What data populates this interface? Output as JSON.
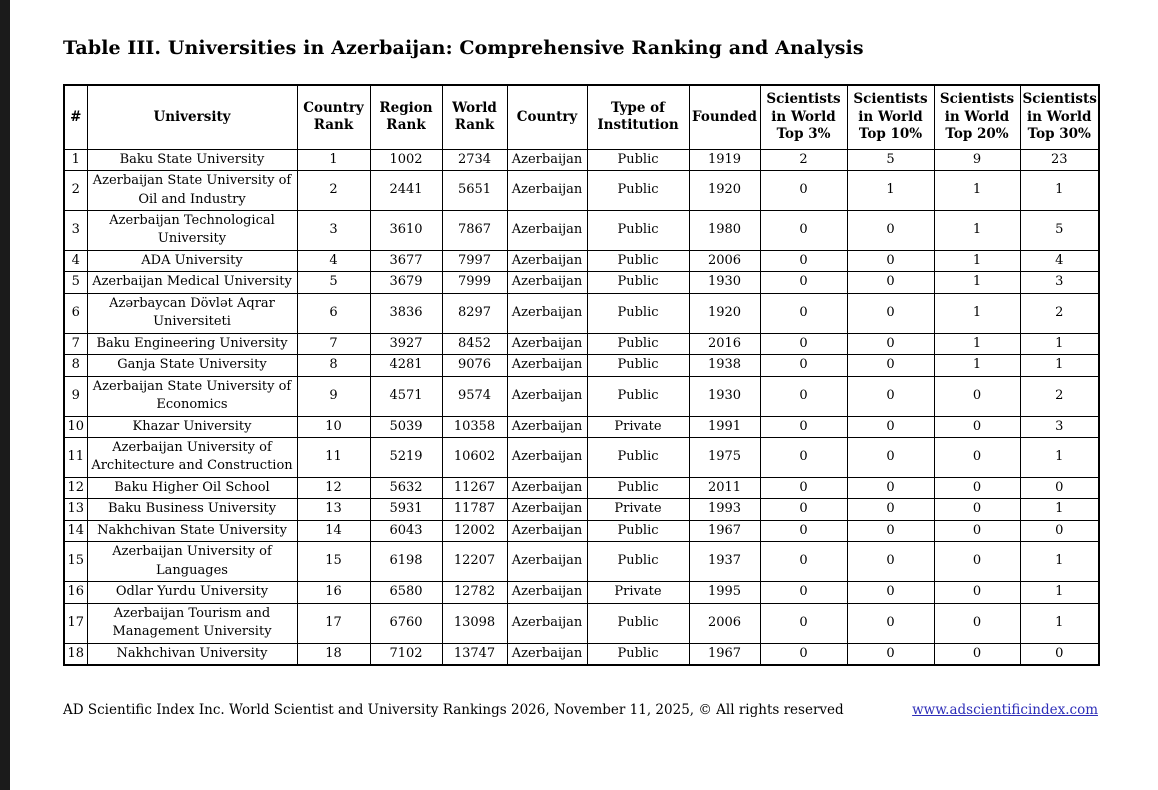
{
  "page": {
    "title": "Table III. Universities in Azerbaijan: Comprehensive Ranking and Analysis",
    "footer": {
      "copyright": "AD Scientific Index Inc. World Scientist and University Rankings 2026, November 11, 2025, © All rights reserved",
      "link": "www.adscientificindex.com"
    },
    "colors": {
      "text": "#000000",
      "table_border": "#000000",
      "link": "#2d2db8",
      "left_bar": "#1b1b1b",
      "background": "#ffffff"
    }
  },
  "table": {
    "columns": [
      "#",
      "University",
      "Country Rank",
      "Region Rank",
      "World Rank",
      "Country",
      "Type of Institution",
      "Founded",
      "Scientists in World Top 3%",
      "Scientists in World Top 10%",
      "Scientists in World Top 20%",
      "Scientists in World Top 30%"
    ],
    "rows": [
      [
        "1",
        "Baku State University",
        "1",
        "1002",
        "2734",
        "Azerbaijan",
        "Public",
        "1919",
        "2",
        "5",
        "9",
        "23"
      ],
      [
        "2",
        "Azerbaijan State University of Oil and Industry",
        "2",
        "2441",
        "5651",
        "Azerbaijan",
        "Public",
        "1920",
        "0",
        "1",
        "1",
        "1"
      ],
      [
        "3",
        "Azerbaijan Technological University",
        "3",
        "3610",
        "7867",
        "Azerbaijan",
        "Public",
        "1980",
        "0",
        "0",
        "1",
        "5"
      ],
      [
        "4",
        "ADA University",
        "4",
        "3677",
        "7997",
        "Azerbaijan",
        "Public",
        "2006",
        "0",
        "0",
        "1",
        "4"
      ],
      [
        "5",
        "Azerbaijan Medical University",
        "5",
        "3679",
        "7999",
        "Azerbaijan",
        "Public",
        "1930",
        "0",
        "0",
        "1",
        "3"
      ],
      [
        "6",
        "Azərbaycan Dövlət Aqrar Universiteti",
        "6",
        "3836",
        "8297",
        "Azerbaijan",
        "Public",
        "1920",
        "0",
        "0",
        "1",
        "2"
      ],
      [
        "7",
        "Baku Engineering University",
        "7",
        "3927",
        "8452",
        "Azerbaijan",
        "Public",
        "2016",
        "0",
        "0",
        "1",
        "1"
      ],
      [
        "8",
        "Ganja State University",
        "8",
        "4281",
        "9076",
        "Azerbaijan",
        "Public",
        "1938",
        "0",
        "0",
        "1",
        "1"
      ],
      [
        "9",
        "Azerbaijan State University of Economics",
        "9",
        "4571",
        "9574",
        "Azerbaijan",
        "Public",
        "1930",
        "0",
        "0",
        "0",
        "2"
      ],
      [
        "10",
        "Khazar University",
        "10",
        "5039",
        "10358",
        "Azerbaijan",
        "Private",
        "1991",
        "0",
        "0",
        "0",
        "3"
      ],
      [
        "11",
        "Azerbaijan University of Architecture and Construction",
        "11",
        "5219",
        "10602",
        "Azerbaijan",
        "Public",
        "1975",
        "0",
        "0",
        "0",
        "1"
      ],
      [
        "12",
        "Baku Higher Oil School",
        "12",
        "5632",
        "11267",
        "Azerbaijan",
        "Public",
        "2011",
        "0",
        "0",
        "0",
        "0"
      ],
      [
        "13",
        "Baku Business University",
        "13",
        "5931",
        "11787",
        "Azerbaijan",
        "Private",
        "1993",
        "0",
        "0",
        "0",
        "1"
      ],
      [
        "14",
        "Nakhchivan State University",
        "14",
        "6043",
        "12002",
        "Azerbaijan",
        "Public",
        "1967",
        "0",
        "0",
        "0",
        "0"
      ],
      [
        "15",
        "Azerbaijan University of Languages",
        "15",
        "6198",
        "12207",
        "Azerbaijan",
        "Public",
        "1937",
        "0",
        "0",
        "0",
        "1"
      ],
      [
        "16",
        "Odlar Yurdu University",
        "16",
        "6580",
        "12782",
        "Azerbaijan",
        "Private",
        "1995",
        "0",
        "0",
        "0",
        "1"
      ],
      [
        "17",
        "Azerbaijan Tourism and Management University",
        "17",
        "6760",
        "13098",
        "Azerbaijan",
        "Public",
        "2006",
        "0",
        "0",
        "0",
        "1"
      ],
      [
        "18",
        "Nakhchivan University",
        "18",
        "7102",
        "13747",
        "Azerbaijan",
        "Public",
        "1967",
        "0",
        "0",
        "0",
        "0"
      ]
    ]
  }
}
